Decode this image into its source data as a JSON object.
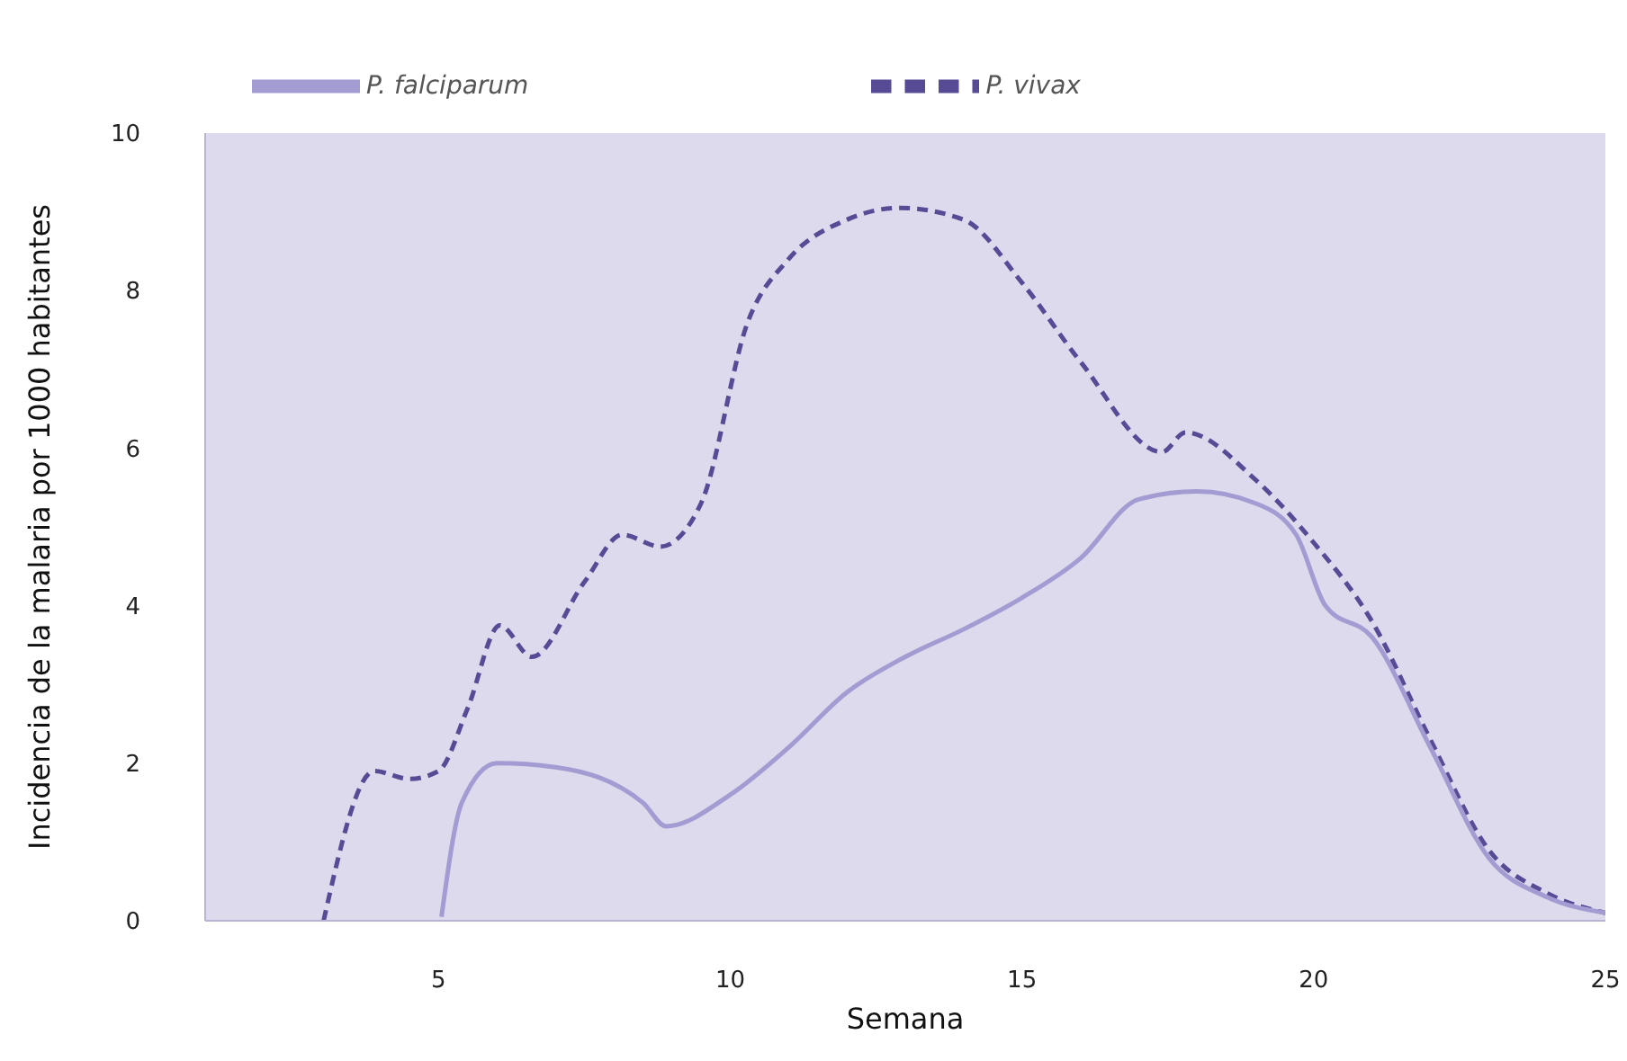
{
  "chart_data": {
    "type": "line",
    "xlabel": "Semana",
    "ylabel": "Incidencia de la malaria por 1000 habitantes",
    "xlim": [
      1,
      25
    ],
    "xticks": [
      5,
      10,
      15,
      20,
      25
    ],
    "ylim": [
      0,
      10
    ],
    "yticks": [
      0,
      2,
      4,
      6,
      8,
      10
    ],
    "grid": false,
    "legend": "top",
    "marker": "none",
    "series": [
      {
        "name": "P. vivax",
        "color": "#574b96",
        "line_style": "dashed",
        "x": [
          3.03,
          3.9,
          4.5,
          5.0,
          5.5,
          6.05,
          6.6,
          7.5,
          8.15,
          8.8,
          9.5,
          10.3,
          11.0,
          12.0,
          12.9,
          14.0,
          15.0,
          16.0,
          17.4,
          17.8,
          19.0,
          20.0,
          21.0,
          22.0,
          23.0,
          24.0,
          25.0
        ],
        "values": [
          0,
          1.9,
          1.8,
          1.9,
          2.7,
          3.75,
          3.35,
          4.3,
          4.9,
          4.75,
          5.3,
          7.6,
          8.4,
          8.9,
          9.05,
          8.9,
          8.1,
          7.1,
          5.95,
          6.2,
          5.6,
          4.8,
          3.8,
          2.3,
          0.9,
          0.35,
          0.1
        ]
      },
      {
        "name": "P. falciparum",
        "color": "#a29cd2",
        "line_style": "solid",
        "x": [
          5.05,
          5.4,
          6.0,
          7.0,
          8.5,
          8.9,
          10.0,
          11.0,
          12.0,
          13.0,
          14.0,
          15.0,
          16.0,
          17.0,
          18.0,
          19.0,
          19.7,
          20.2,
          21.0,
          22.0,
          23.0,
          24.0,
          25.0
        ],
        "values": [
          0.05,
          1.5,
          2.0,
          1.95,
          1.5,
          1.2,
          1.6,
          2.2,
          2.9,
          3.35,
          3.7,
          4.1,
          4.6,
          5.35,
          5.45,
          5.3,
          4.9,
          4.0,
          3.6,
          2.2,
          0.8,
          0.3,
          0.1
        ]
      }
    ]
  }
}
